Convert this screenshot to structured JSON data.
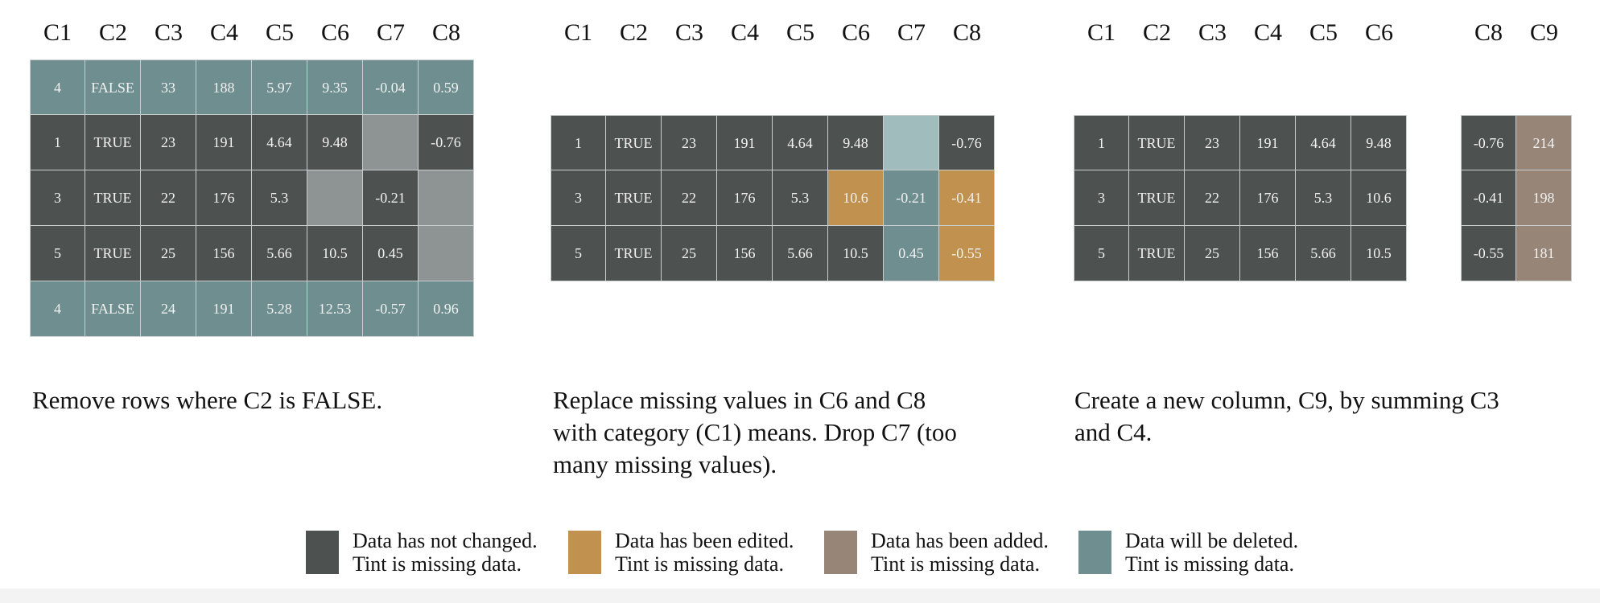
{
  "colors": {
    "unchanged": "#4d5150",
    "unchanged_missing": "#8e9393",
    "deleted": "#6e8e8f",
    "deleted_missing": "#a0bcbd",
    "edited": "#c0914f",
    "added": "#978678"
  },
  "panel1": {
    "headers": [
      "C1",
      "C2",
      "C3",
      "C4",
      "C5",
      "C6",
      "C7",
      "C8"
    ],
    "rows": [
      [
        "4",
        "FALSE",
        "33",
        "188",
        "5.97",
        "9.35",
        "-0.04",
        "0.59"
      ],
      [
        "1",
        "TRUE",
        "23",
        "191",
        "4.64",
        "9.48",
        "",
        "-0.76"
      ],
      [
        "3",
        "TRUE",
        "22",
        "176",
        "5.3",
        "",
        "-0.21",
        ""
      ],
      [
        "5",
        "TRUE",
        "25",
        "156",
        "5.66",
        "10.5",
        "0.45",
        ""
      ],
      [
        "4",
        "FALSE",
        "24",
        "191",
        "5.28",
        "12.53",
        "-0.57",
        "0.96"
      ]
    ],
    "caption": "Remove rows where C2 is FALSE."
  },
  "panel2": {
    "headers": [
      "C1",
      "C2",
      "C3",
      "C4",
      "C5",
      "C6",
      "C7",
      "C8"
    ],
    "rows": [
      [
        "1",
        "TRUE",
        "23",
        "191",
        "4.64",
        "9.48",
        "",
        "-0.76"
      ],
      [
        "3",
        "TRUE",
        "22",
        "176",
        "5.3",
        "10.6",
        "-0.21",
        "-0.41"
      ],
      [
        "5",
        "TRUE",
        "25",
        "156",
        "5.66",
        "10.5",
        "0.45",
        "-0.55"
      ]
    ],
    "caption_lines": [
      "Replace missing values in C6 and C8",
      "with category (C1) means. Drop C7 (too",
      "many missing values)."
    ]
  },
  "panel3": {
    "headers_left": [
      "C1",
      "C2",
      "C3",
      "C4",
      "C5",
      "C6"
    ],
    "headers_right": [
      "C8",
      "C9"
    ],
    "rows_left": [
      [
        "1",
        "TRUE",
        "23",
        "191",
        "4.64",
        "9.48"
      ],
      [
        "3",
        "TRUE",
        "22",
        "176",
        "5.3",
        "10.6"
      ],
      [
        "5",
        "TRUE",
        "25",
        "156",
        "5.66",
        "10.5"
      ]
    ],
    "rows_right": [
      [
        "-0.76",
        "214"
      ],
      [
        "-0.41",
        "198"
      ],
      [
        "-0.55",
        "181"
      ]
    ],
    "caption_lines": [
      "Create a new column, C9, by summing C3",
      "and C4."
    ]
  },
  "legend": [
    {
      "line1": "Data has not changed.",
      "line2": "Tint is missing data.",
      "color": "#4d5150"
    },
    {
      "line1": "Data has been edited.",
      "line2": "Tint is missing data.",
      "color": "#c0914f"
    },
    {
      "line1": "Data has been added.",
      "line2": "Tint is missing data.",
      "color": "#978678"
    },
    {
      "line1": "Data will be deleted.",
      "line2": "Tint is missing data.",
      "color": "#6e8e8f"
    }
  ]
}
